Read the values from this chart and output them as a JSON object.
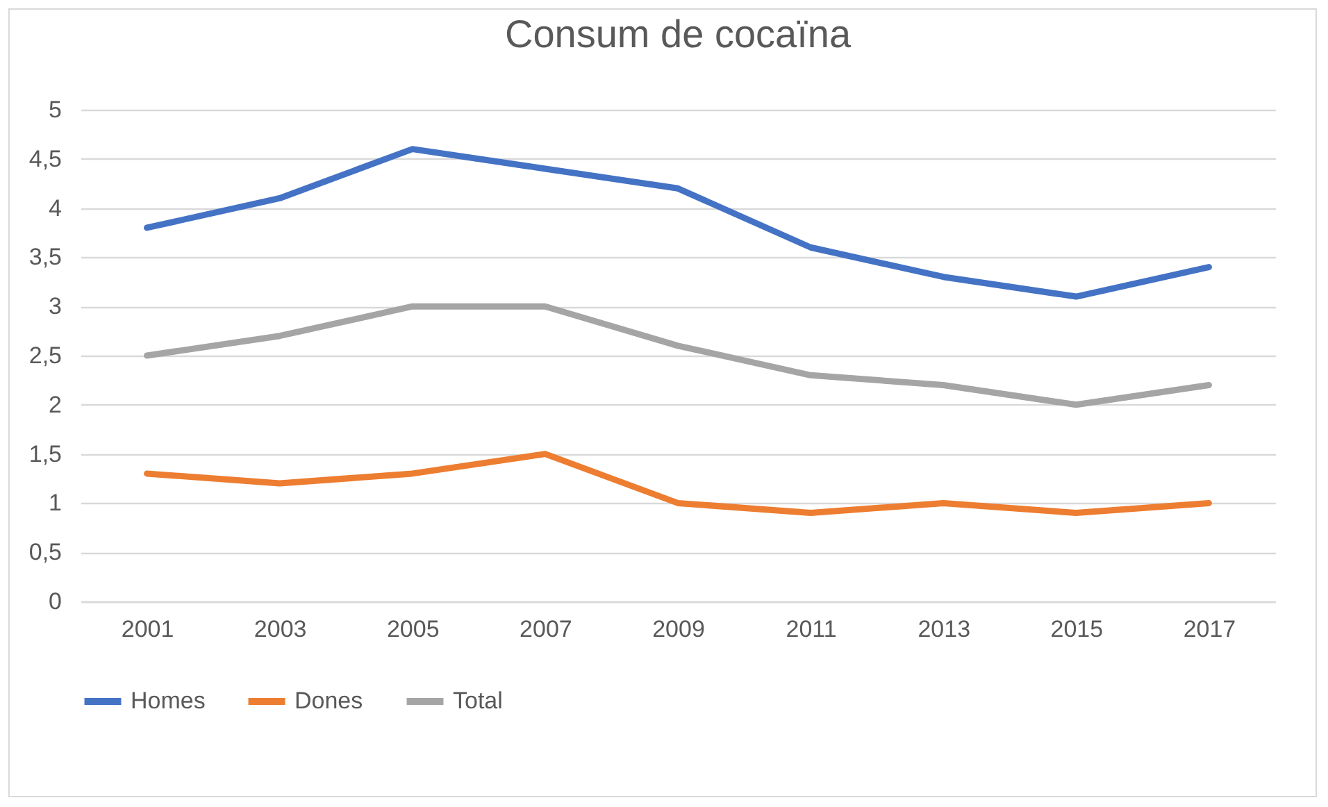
{
  "chart_data": {
    "type": "line",
    "title": "Consum de cocaïna",
    "categories": [
      "2001",
      "2003",
      "2005",
      "2007",
      "2009",
      "2011",
      "2013",
      "2015",
      "2017"
    ],
    "series": [
      {
        "name": "Homes",
        "color": "#4472c4",
        "values": [
          3.8,
          4.1,
          4.6,
          4.4,
          4.2,
          3.6,
          3.3,
          3.1,
          3.4
        ]
      },
      {
        "name": "Dones",
        "color": "#ed7d31",
        "values": [
          1.3,
          1.2,
          1.3,
          1.5,
          1.0,
          0.9,
          1.0,
          0.9,
          1.0
        ]
      },
      {
        "name": "Total",
        "color": "#a5a5a5",
        "values": [
          2.5,
          2.7,
          3.0,
          3.0,
          2.6,
          2.3,
          2.2,
          2.0,
          2.2
        ]
      }
    ],
    "ylim": [
      0,
      5
    ],
    "yticks": [
      0,
      {
        "value": 0.5,
        "label": "0,5"
      },
      1,
      {
        "value": 1.5,
        "label": "1,5"
      },
      2,
      {
        "value": 2.5,
        "label": "2,5"
      },
      3,
      {
        "value": 3.5,
        "label": "3,5"
      },
      4,
      {
        "value": 4.5,
        "label": "4,5"
      },
      5
    ],
    "grid": "y",
    "legend": "bottom",
    "marker": "none",
    "line_style": "solid"
  }
}
